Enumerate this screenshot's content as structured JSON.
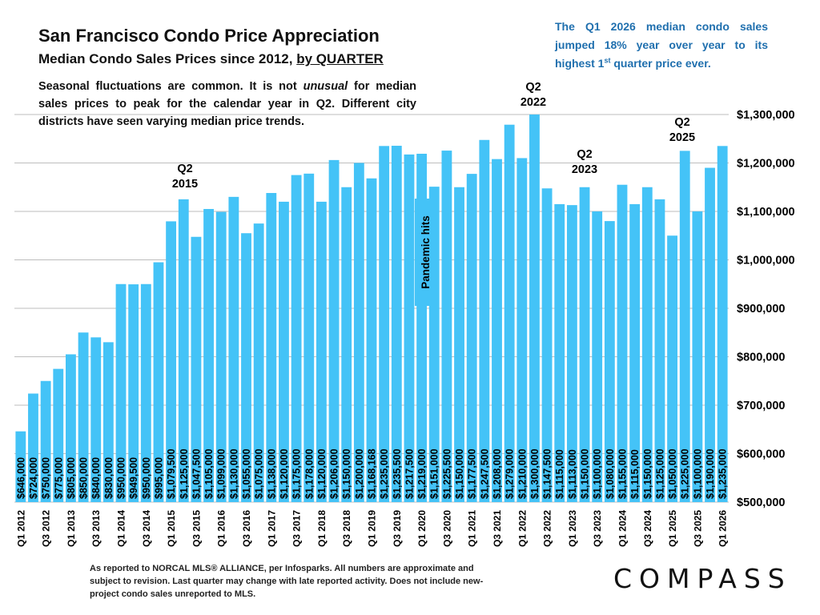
{
  "chart_data": {
    "type": "bar",
    "title": "San Francisco Condo Price Appreciation",
    "subtitle": "Median Condo Sales Prices since 2012,",
    "subtitle_emphasis": "by QUARTER",
    "description": [
      "Seasonal fluctuations are common. It is not ",
      "unusual",
      " for median sales prices to peak for the calendar year in Q2. Different city districts have seen varying median price trends."
    ],
    "callout": [
      "The Q1 2026 median condo sales jumped 18% year over year to its highest 1",
      "st",
      " quarter price ever."
    ],
    "annotations": [
      [
        "Q2",
        "2015"
      ],
      [
        "Q2",
        "2022"
      ],
      [
        "Q2",
        "2023"
      ],
      [
        "Q2",
        "2025"
      ],
      "Pandemic hits"
    ],
    "footnote": "As reported to NORCAL MLS® ALLIANCE, per Infosparks. All numbers are approximate and subject to revision. Last quarter may change with late reported activity. Does not include new-project condo sales unreported to MLS.",
    "logo": "COMPASS",
    "color": "#44c3f7",
    "grid": true,
    "categories": [
      "Q1 2012",
      null,
      "Q3 2012",
      null,
      "Q1 2013",
      null,
      "Q3 2013",
      null,
      "Q1 2014",
      null,
      "Q3 2014",
      null,
      "Q1 2015",
      null,
      "Q3 2015",
      null,
      "Q1 2016",
      null,
      "Q3 2016",
      null,
      "Q1 2017",
      null,
      "Q3 2017",
      null,
      "Q1 2018",
      null,
      "Q3 2018",
      null,
      "Q1 2019",
      null,
      "Q3 2019",
      null,
      "Q1 2020",
      null,
      "Q3 2020",
      null,
      "Q1 2021",
      null,
      "Q3 2021",
      null,
      "Q1 2022",
      null,
      "Q3 2022",
      null,
      "Q1 2023",
      null,
      "Q3 2023",
      null,
      "Q1 2024",
      null,
      "Q3 2024",
      null,
      "Q1 2025",
      null,
      "Q3 2025",
      null,
      "Q1 2026"
    ],
    "values": [
      646000,
      724000,
      750000,
      775000,
      805000,
      850000,
      840000,
      830000,
      950000,
      949500,
      950000,
      995000,
      1079500,
      1125000,
      1047500,
      1105000,
      1099000,
      1130000,
      1055000,
      1075000,
      1138000,
      1120000,
      1175000,
      1178000,
      1120000,
      1206000,
      1150000,
      1200000,
      1168168,
      1235000,
      1235500,
      1217500,
      1219000,
      1151000,
      1225500,
      1150000,
      1177500,
      1247500,
      1208000,
      1279000,
      1210000,
      1300000,
      1147500,
      1115000,
      1113000,
      1150000,
      1100000,
      1080000,
      1155000,
      1115000,
      1150000,
      1125000,
      1050000,
      1225000,
      1100000,
      1190000,
      1235000
    ],
    "value_labels": [
      "$646,000",
      "$724,000",
      "$750,000",
      "$775,000",
      "$805,000",
      "$850,000",
      "$840,000",
      "$830,000",
      "$950,000",
      "$949,500",
      "$950,000",
      "$995,000",
      "$1,079,500",
      "$1,125,000",
      "$1,047,500",
      "$1,105,000",
      "$1,099,000",
      "$1,130,000",
      "$1,055,000",
      "$1,075,000",
      "$1,138,000",
      "$1,120,000",
      "$1,175,000",
      "$1,178,000",
      "$1,120,000",
      "$1,206,000",
      "$1,150,000",
      "$1,200,000",
      "$1,168,168",
      "$1,235,000",
      "$1,235,500",
      "$1,217,500",
      "$1,219,000",
      "$1,151,000",
      "$1,225,500",
      "$1,150,000",
      "$1,177,500",
      "$1,247,500",
      "$1,208,000",
      "$1,279,000",
      "$1,210,000",
      "$1,300,000",
      "$1,147,500",
      "$1,115,000",
      "$1,113,000",
      "$1,150,000",
      "$1,100,000",
      "$1,080,000",
      "$1,155,000",
      "$1,115,000",
      "$1,150,000",
      "$1,125,000",
      "$1,050,000",
      "$1,225,000",
      "$1,100,000",
      "$1,190,000",
      "$1,235,000"
    ],
    "ylim": [
      500000,
      1300000
    ],
    "yticks": [
      {
        "value": 500000,
        "label": "$500,000"
      },
      {
        "value": 600000,
        "label": "$600,000"
      },
      {
        "value": 700000,
        "label": "$700,000"
      },
      {
        "value": 800000,
        "label": "$800,000"
      },
      {
        "value": 900000,
        "label": "$900,000"
      },
      {
        "value": 1000000,
        "label": "$1,000,000"
      },
      {
        "value": 1100000,
        "label": "$1,100,000"
      },
      {
        "value": 1200000,
        "label": "$1,200,000"
      },
      {
        "value": 1300000,
        "label": "$1,300,000"
      }
    ]
  }
}
